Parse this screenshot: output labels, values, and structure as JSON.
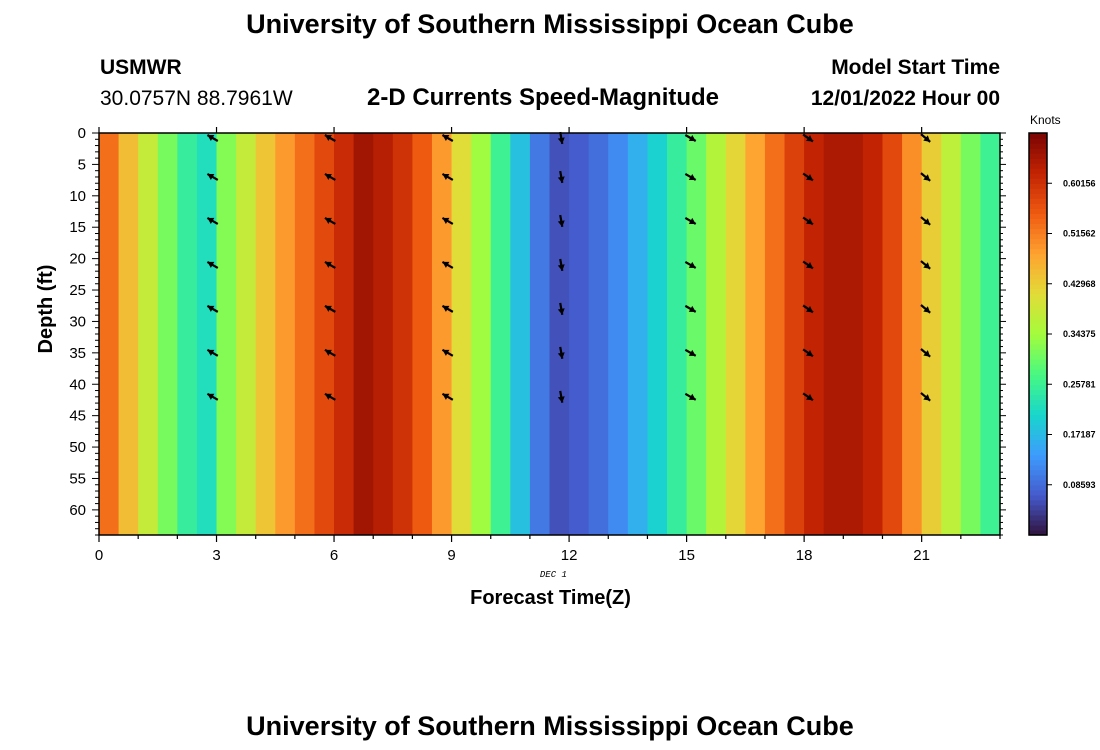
{
  "page": {
    "title_top": "University of Southern Mississippi Ocean Cube",
    "title_bottom": "University of Southern Mississippi Ocean Cube",
    "station": "USMWR",
    "location": "30.0757N  88.7961W",
    "plot_title": "2-D Currents Speed-Magnitude",
    "model_start_label": "Model Start Time",
    "model_start_value": "12/01/2022 Hour 00"
  },
  "chart_data": {
    "type": "heatmap",
    "title": "2-D Currents Speed-Magnitude",
    "xlabel": "Forecast Time(Z)",
    "ylabel": "Depth (ft)",
    "date_label": "DEC 1",
    "xlim": [
      0,
      23
    ],
    "ylim": [
      0,
      64
    ],
    "x_ticks": [
      0,
      3,
      6,
      9,
      12,
      15,
      18,
      21
    ],
    "y_ticks": [
      0,
      5,
      10,
      15,
      20,
      25,
      30,
      35,
      40,
      45,
      50,
      55,
      60
    ],
    "colorbar": {
      "title": "Knots",
      "range": [
        0,
        0.6875
      ],
      "tick_values": [
        0.08593,
        0.17187,
        0.25781,
        0.34375,
        0.42968,
        0.51562,
        0.60156
      ],
      "tick_labels": [
        "0.08593",
        "0.17187",
        "0.25781",
        "0.34375",
        "0.42968",
        "0.51562",
        "0.60156"
      ],
      "colormap": "turbo"
    },
    "time_hours": [
      0.25,
      0.75,
      1.25,
      1.75,
      2.25,
      2.75,
      3.25,
      3.75,
      4.25,
      4.75,
      5.25,
      5.75,
      6.25,
      6.75,
      7.25,
      7.75,
      8.25,
      8.75,
      9.25,
      9.75,
      10.25,
      10.75,
      11.25,
      11.75,
      12.25,
      12.75,
      13.25,
      13.75,
      14.25,
      14.75,
      15.25,
      15.75,
      16.25,
      16.75,
      17.25,
      17.75,
      18.25,
      18.75,
      19.25,
      19.75,
      20.25,
      20.75,
      21.25,
      21.75,
      22.25,
      22.75
    ],
    "speed_knots": [
      0.53,
      0.45,
      0.38,
      0.31,
      0.25,
      0.22,
      0.32,
      0.38,
      0.44,
      0.49,
      0.53,
      0.57,
      0.61,
      0.65,
      0.63,
      0.6,
      0.55,
      0.49,
      0.41,
      0.34,
      0.26,
      0.18,
      0.1,
      0.06,
      0.07,
      0.09,
      0.12,
      0.16,
      0.2,
      0.25,
      0.3,
      0.36,
      0.42,
      0.48,
      0.53,
      0.58,
      0.62,
      0.64,
      0.64,
      0.62,
      0.57,
      0.5,
      0.43,
      0.37,
      0.31,
      0.26
    ],
    "vectors": {
      "times": [
        2.9,
        5.9,
        8.9,
        11.8,
        15.1,
        18.1,
        21.1
      ],
      "depths_ft": [
        0,
        7,
        14,
        21,
        28,
        35,
        42
      ],
      "direction_deg": [
        300,
        300,
        300,
        170,
        120,
        125,
        130
      ]
    }
  }
}
